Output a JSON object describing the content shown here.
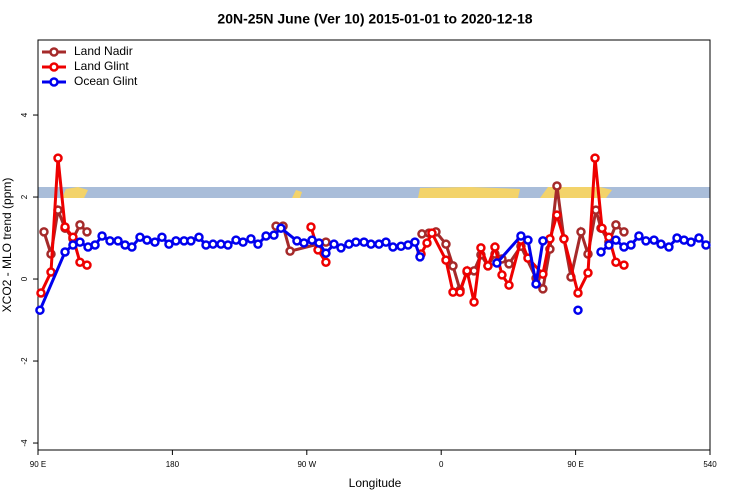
{
  "chart_data": {
    "type": "line",
    "title": "20N-25N June (Ver 10)   2015-01-01 to 2020-12-18",
    "x_label": "Longitude",
    "y_label": "XCO2 - MLO trend (ppm)",
    "xlim": [
      90,
      540
    ],
    "ylim": [
      -4.17,
      5.83
    ],
    "xticks": [
      {
        "value": 90,
        "label": "90 E"
      },
      180,
      {
        "value": 270,
        "label": "90 W"
      },
      {
        "value": 360,
        "label": "0"
      },
      {
        "value": 450,
        "label": "90 E"
      },
      540
    ],
    "yticks": [
      -4,
      -2,
      0,
      2,
      4
    ],
    "legend": "top-left",
    "series": [
      {
        "name": "Land Nadir",
        "color": "#a52a2a",
        "x": [
          94.0,
          98.7,
          103.4,
          108.1,
          113.4,
          118.1,
          122.8,
          null,
          249.4,
          254.1,
          258.8,
          282.8,
          null,
          347.1,
          351.8,
          356.5,
          363.2,
          367.9,
          372.6,
          377.3,
          382.0,
          386.6,
          391.3,
          396.0,
          400.7,
          405.4,
          413.4,
          423.5,
          428.1,
          432.8,
          437.5,
          442.2,
          446.9,
          453.6,
          458.3,
          463.6,
          467.0,
          472.3,
          477.0,
          482.4
        ],
        "values": [
          1.15,
          0.61,
          1.68,
          1.24,
          0.98,
          1.32,
          1.15,
          null,
          1.29,
          1.29,
          0.68,
          0.9,
          null,
          1.1,
          1.12,
          1.15,
          0.85,
          0.32,
          -0.27,
          0.17,
          0.2,
          0.59,
          0.32,
          0.61,
          0.49,
          0.37,
          0.8,
          0.02,
          -0.24,
          0.73,
          2.27,
          0.98,
          0.05,
          1.15,
          0.61,
          1.68,
          1.24,
          0.9,
          1.32,
          1.15
        ]
      },
      {
        "name": "Land Glint",
        "color": "#ee0000",
        "x": [
          92.0,
          98.7,
          103.4,
          108.1,
          113.4,
          118.1,
          122.8,
          null,
          272.8,
          277.5,
          282.8,
          null,
          346.5,
          350.5,
          353.8,
          363.2,
          367.9,
          372.6,
          377.3,
          382.0,
          386.6,
          391.3,
          396.0,
          400.7,
          405.4,
          413.4,
          418.1,
          428.1,
          432.8,
          437.5,
          442.2,
          451.6,
          458.3,
          463.0,
          467.7,
          472.3,
          477.0,
          482.4
        ],
        "values": [
          -0.34,
          0.17,
          2.95,
          1.27,
          1.02,
          0.41,
          0.34,
          null,
          1.27,
          0.71,
          0.41,
          null,
          0.61,
          0.88,
          1.12,
          0.46,
          -0.32,
          -0.32,
          0.2,
          -0.56,
          0.76,
          0.32,
          0.78,
          0.1,
          -0.15,
          0.95,
          0.51,
          0.12,
          0.98,
          1.56,
          0.98,
          -0.34,
          0.15,
          2.95,
          1.24,
          1.02,
          0.41,
          0.34
        ]
      },
      {
        "name": "Ocean Glint",
        "color": "#0000ee",
        "x": [
          91.3,
          108.1,
          113.4,
          118.1,
          123.5,
          128.2,
          132.9,
          138.2,
          143.6,
          148.3,
          152.9,
          158.3,
          163.0,
          168.3,
          173.0,
          177.7,
          182.4,
          187.8,
          192.4,
          197.8,
          202.5,
          207.2,
          212.5,
          217.2,
          222.6,
          227.3,
          232.6,
          237.3,
          242.7,
          248.0,
          252.7,
          263.4,
          268.1,
          273.5,
          278.2,
          282.8,
          288.2,
          292.9,
          298.2,
          302.9,
          308.3,
          313.0,
          318.3,
          323.0,
          327.7,
          333.1,
          337.8,
          342.4,
          345.8,
          null,
          397.3,
          413.4,
          418.1,
          423.5,
          428.1,
          null,
          451.6,
          null,
          467.0,
          472.3,
          477.0,
          482.4,
          487.1,
          492.4,
          497.1,
          502.5,
          507.2,
          512.5,
          517.9,
          522.6,
          527.3,
          532.6,
          537.3
        ],
        "values": [
          -0.76,
          0.66,
          0.83,
          0.9,
          0.78,
          0.83,
          1.05,
          0.93,
          0.93,
          0.83,
          0.78,
          1.02,
          0.95,
          0.9,
          1.02,
          0.85,
          0.93,
          0.93,
          0.93,
          1.02,
          0.83,
          0.85,
          0.85,
          0.83,
          0.95,
          0.9,
          0.98,
          0.85,
          1.05,
          1.07,
          1.24,
          0.93,
          0.88,
          0.95,
          0.88,
          0.63,
          0.85,
          0.76,
          0.85,
          0.9,
          0.9,
          0.85,
          0.85,
          0.9,
          0.78,
          0.8,
          0.83,
          0.9,
          0.54,
          null,
          0.39,
          1.05,
          0.95,
          -0.12,
          0.93,
          null,
          -0.76,
          null,
          0.66,
          0.83,
          0.95,
          0.78,
          0.83,
          1.05,
          0.93,
          0.95,
          0.85,
          0.78,
          1.0,
          0.95,
          0.9,
          1.0,
          0.83
        ]
      }
    ]
  }
}
